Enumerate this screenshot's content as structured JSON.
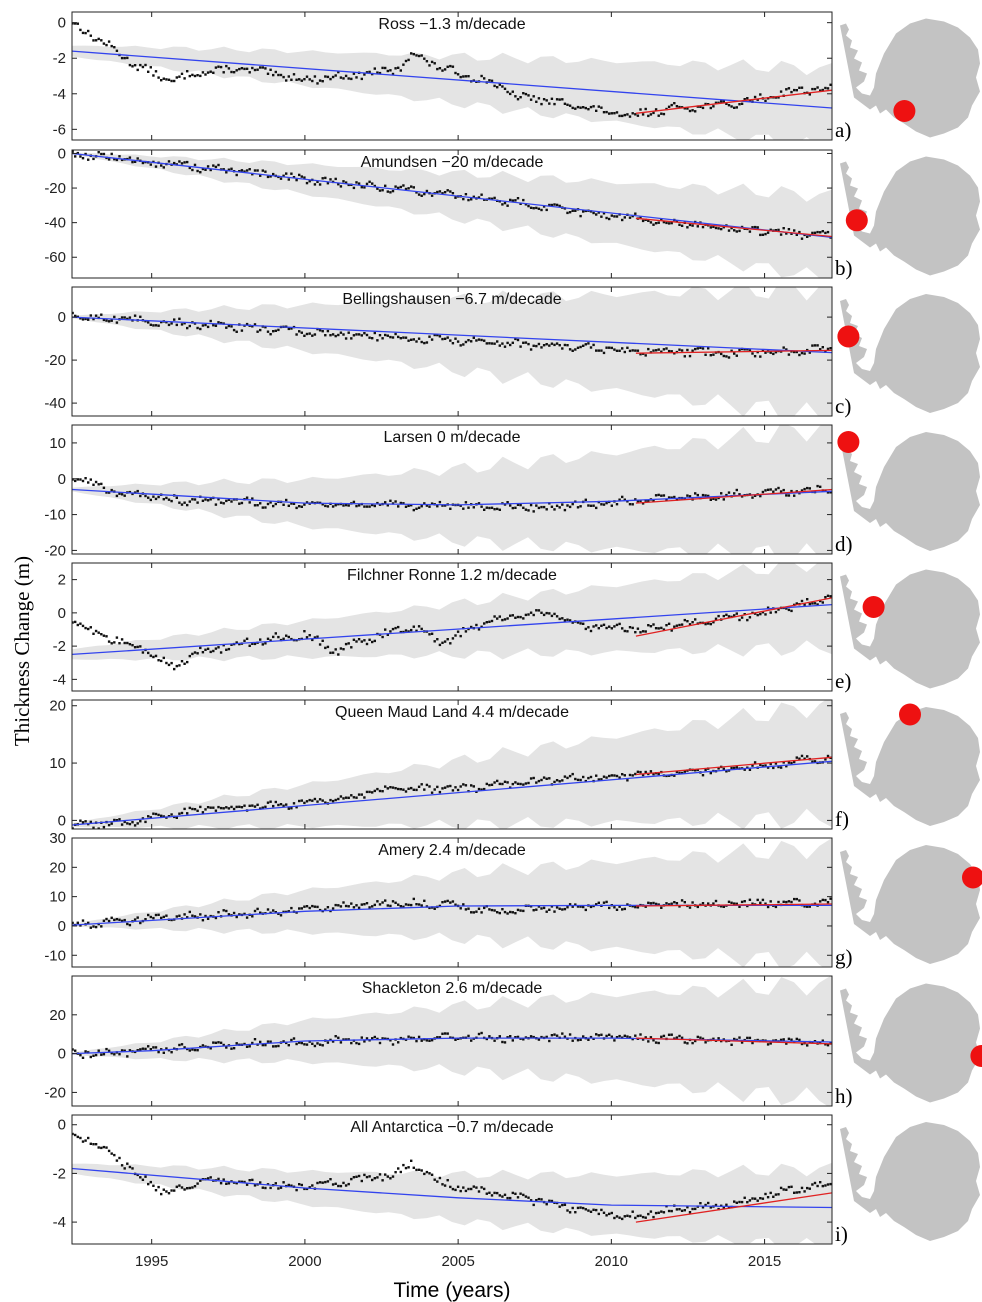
{
  "chart_data": {
    "type": "scatter",
    "ylabel": "Thickness Change (m)",
    "xlabel": "Time (years)",
    "xlim": [
      1992.4,
      2017.2
    ],
    "xticks": [
      1995,
      2000,
      2005,
      2010,
      2015
    ],
    "colors": {
      "points": "#111111",
      "trend_full": "#3344ee",
      "trend_recent": "#e02222",
      "uncertainty": "#e4e4e4",
      "map": "#c3c3c3",
      "marker": "#ee1111"
    },
    "panels": [
      {
        "letter": "a)",
        "title": "Ross −1.3 m/decade",
        "ylim": [
          -6.6,
          0.6
        ],
        "yticks": [
          0,
          -2,
          -4,
          -6
        ],
        "trend_full": [
          [
            1992.4,
            -1.6
          ],
          [
            2017.2,
            -4.8
          ]
        ],
        "trend_recent": [
          [
            2010.8,
            -5.1
          ],
          [
            2017.2,
            -3.8
          ]
        ],
        "band_start": 0.3,
        "band_end": 2.2,
        "anchors": [
          [
            1992.4,
            0.0
          ],
          [
            1993.5,
            -1.2
          ],
          [
            1994.5,
            -2.4
          ],
          [
            1995.6,
            -3.3
          ],
          [
            1996.5,
            -2.8
          ],
          [
            1998,
            -2.6
          ],
          [
            2000,
            -3.2
          ],
          [
            2002,
            -2.9
          ],
          [
            2003.1,
            -2.6
          ],
          [
            2003.5,
            -1.7
          ],
          [
            2004.5,
            -2.6
          ],
          [
            2006,
            -3.3
          ],
          [
            2007,
            -4.2
          ],
          [
            2008,
            -4.4
          ],
          [
            2009,
            -4.7
          ],
          [
            2010.5,
            -5.3
          ],
          [
            2012,
            -4.8
          ],
          [
            2014,
            -4.6
          ],
          [
            2016,
            -3.8
          ],
          [
            2017.1,
            -3.7
          ]
        ],
        "map_marker": [
          0.46,
          0.78
        ]
      },
      {
        "letter": "b)",
        "title": "Amundsen −20 m/decade",
        "ylim": [
          -72,
          2
        ],
        "yticks": [
          0,
          -20,
          -40,
          -60
        ],
        "trend_full": [
          [
            1992.4,
            0
          ],
          [
            2017.2,
            -48.5
          ]
        ],
        "trend_recent": [
          [
            2010.8,
            -37.5
          ],
          [
            2017.2,
            -48
          ]
        ],
        "band_start": 0.5,
        "band_end": 24,
        "anchors": [
          [
            1992.4,
            0
          ],
          [
            1995,
            -5
          ],
          [
            2000,
            -15
          ],
          [
            2005,
            -24
          ],
          [
            2010,
            -36
          ],
          [
            2015,
            -45
          ],
          [
            2017.1,
            -48
          ]
        ],
        "map_marker": [
          0.12,
          0.55
        ]
      },
      {
        "letter": "c)",
        "title": "Bellingshausen −6.7 m/decade",
        "ylim": [
          -46,
          14
        ],
        "yticks": [
          0,
          -20,
          -40
        ],
        "trend_full": [
          [
            1992.4,
            0
          ],
          [
            2017.2,
            -16.5
          ]
        ],
        "trend_recent": [
          [
            2010.8,
            -16.8
          ],
          [
            2017.2,
            -15.5
          ]
        ],
        "band_start": 0.5,
        "band_end": 30,
        "anchors": [
          [
            1992.4,
            0.5
          ],
          [
            1995,
            -2
          ],
          [
            2000,
            -7
          ],
          [
            2005,
            -11
          ],
          [
            2010,
            -15
          ],
          [
            2014,
            -17
          ],
          [
            2017.1,
            -15
          ]
        ],
        "map_marker": [
          0.06,
          0.38
        ]
      },
      {
        "letter": "d)",
        "title": "Larsen 0 m/decade",
        "ylim": [
          -21,
          15
        ],
        "yticks": [
          10,
          0,
          -10,
          -20
        ],
        "trend_full": [
          [
            1992.4,
            -3.0
          ],
          [
            2000,
            -6.8
          ],
          [
            2005,
            -7.3
          ],
          [
            2010,
            -6.3
          ],
          [
            2017.2,
            -3.5
          ]
        ],
        "trend_recent": [
          [
            2010.8,
            -6.8
          ],
          [
            2017.2,
            -3.0
          ]
        ],
        "band_start": 0.5,
        "band_end": 18,
        "anchors": [
          [
            1992.4,
            0.5
          ],
          [
            1994,
            -4
          ],
          [
            1996,
            -6
          ],
          [
            2000,
            -7
          ],
          [
            2004,
            -7.5
          ],
          [
            2008,
            -8
          ],
          [
            2011,
            -6
          ],
          [
            2014,
            -4.5
          ],
          [
            2017.1,
            -3
          ]
        ],
        "map_marker": [
          0.06,
          0.12
        ]
      },
      {
        "letter": "e)",
        "title": "Filchner Ronne 1.2 m/decade",
        "ylim": [
          -4.7,
          3.0
        ],
        "yticks": [
          2,
          0,
          -2,
          -4
        ],
        "trend_full": [
          [
            1992.4,
            -2.5
          ],
          [
            2017.2,
            0.5
          ]
        ],
        "trend_recent": [
          [
            2010.8,
            -1.4
          ],
          [
            2017.2,
            0.9
          ]
        ],
        "band_start": 0.3,
        "band_end": 2.6,
        "anchors": [
          [
            1992.4,
            -0.6
          ],
          [
            1993.5,
            -1.5
          ],
          [
            1994.5,
            -2.0
          ],
          [
            1995.7,
            -3.2
          ],
          [
            1996.5,
            -2.4
          ],
          [
            1998,
            -1.8
          ],
          [
            2000,
            -1.3
          ],
          [
            2001,
            -2.3
          ],
          [
            2002.5,
            -1.3
          ],
          [
            2003.5,
            -0.8
          ],
          [
            2004.5,
            -1.8
          ],
          [
            2006,
            -0.5
          ],
          [
            2008,
            0.0
          ],
          [
            2009,
            -0.8
          ],
          [
            2011,
            -1.0
          ],
          [
            2013,
            -0.5
          ],
          [
            2015,
            0.0
          ],
          [
            2017.1,
            0.9
          ]
        ],
        "map_marker": [
          0.24,
          0.34
        ]
      },
      {
        "letter": "f)",
        "title": "Queen Maud Land 4.4 m/decade",
        "ylim": [
          -1.5,
          21
        ],
        "yticks": [
          20,
          10,
          0
        ],
        "trend_full": [
          [
            1992.4,
            -0.8
          ],
          [
            2017.2,
            10.3
          ]
        ],
        "trend_recent": [
          [
            2010.8,
            8.0
          ],
          [
            2017.2,
            11.0
          ]
        ],
        "band_start": 0.3,
        "band_end": 10,
        "anchors": [
          [
            1992.4,
            -1.0
          ],
          [
            1994,
            -0.5
          ],
          [
            1996,
            1.5
          ],
          [
            1998,
            2.5
          ],
          [
            2000,
            3.0
          ],
          [
            2003,
            5.5
          ],
          [
            2005,
            5.5
          ],
          [
            2008,
            7.0
          ],
          [
            2011,
            8.0
          ],
          [
            2014,
            9.0
          ],
          [
            2017.1,
            11.0
          ]
        ],
        "map_marker": [
          0.5,
          0.1
        ]
      },
      {
        "letter": "g)",
        "title": "Amery 2.4 m/decade",
        "ylim": [
          -14,
          30
        ],
        "yticks": [
          30,
          20,
          10,
          0,
          -10
        ],
        "trend_full": [
          [
            1992.4,
            0.3
          ],
          [
            2000,
            5.0
          ],
          [
            2005,
            6.8
          ],
          [
            2010,
            7.0
          ],
          [
            2017.2,
            7.0
          ]
        ],
        "trend_recent": [
          [
            2010.8,
            6.8
          ],
          [
            2017.2,
            7.5
          ]
        ],
        "band_start": 0.4,
        "band_end": 20,
        "anchors": [
          [
            1992.4,
            0.5
          ],
          [
            1995,
            2.5
          ],
          [
            2000,
            5.5
          ],
          [
            2003,
            8.0
          ],
          [
            2005,
            7.0
          ],
          [
            2006,
            5.0
          ],
          [
            2008,
            6.0
          ],
          [
            2011,
            7.0
          ],
          [
            2014,
            7.5
          ],
          [
            2017.1,
            8.0
          ]
        ],
        "map_marker": [
          0.95,
          0.3
        ]
      },
      {
        "letter": "h)",
        "title": "Shackleton 2.6 m/decade",
        "ylim": [
          -27,
          40
        ],
        "yticks": [
          20,
          0,
          -20
        ],
        "trend_full": [
          [
            1992.4,
            0
          ],
          [
            1995,
            1.5
          ],
          [
            2000,
            6.5
          ],
          [
            2005,
            8.0
          ],
          [
            2010,
            8.0
          ],
          [
            2017.2,
            6.0
          ]
        ],
        "trend_recent": [
          [
            2010.8,
            8.0
          ],
          [
            2017.2,
            5.0
          ]
        ],
        "band_start": 0.5,
        "band_end": 30,
        "anchors": [
          [
            1992.4,
            0
          ],
          [
            1995,
            1.5
          ],
          [
            1998,
            5
          ],
          [
            2000,
            6
          ],
          [
            2005,
            8
          ],
          [
            2009,
            8.5
          ],
          [
            2012,
            7.5
          ],
          [
            2015,
            6.5
          ],
          [
            2017.1,
            5.5
          ]
        ],
        "map_marker": [
          1.01,
          0.62
        ]
      },
      {
        "letter": "i)",
        "title": "All Antarctica −0.7 m/decade",
        "ylim": [
          -4.9,
          0.4
        ],
        "yticks": [
          0,
          -2,
          -4
        ],
        "trend_full": [
          [
            1992.4,
            -1.8
          ],
          [
            2000,
            -2.6
          ],
          [
            2005,
            -3.0
          ],
          [
            2010,
            -3.3
          ],
          [
            2017.2,
            -3.4
          ]
        ],
        "trend_recent": [
          [
            2010.8,
            -4.0
          ],
          [
            2017.2,
            -2.8
          ]
        ],
        "band_start": 0.2,
        "band_end": 1.6,
        "anchors": [
          [
            1992.4,
            -0.3
          ],
          [
            1993.5,
            -1.0
          ],
          [
            1994.5,
            -2.0
          ],
          [
            1995.6,
            -2.9
          ],
          [
            1996.5,
            -2.3
          ],
          [
            1998,
            -2.4
          ],
          [
            2000,
            -2.6
          ],
          [
            2001.5,
            -2.3
          ],
          [
            2003,
            -2.0
          ],
          [
            2003.5,
            -1.6
          ],
          [
            2004.5,
            -2.4
          ],
          [
            2006,
            -2.8
          ],
          [
            2008,
            -3.2
          ],
          [
            2009,
            -3.5
          ],
          [
            2010.5,
            -3.8
          ],
          [
            2012,
            -3.5
          ],
          [
            2014,
            -3.3
          ],
          [
            2016,
            -2.6
          ],
          [
            2017.1,
            -2.5
          ]
        ],
        "map_marker": null
      }
    ]
  }
}
